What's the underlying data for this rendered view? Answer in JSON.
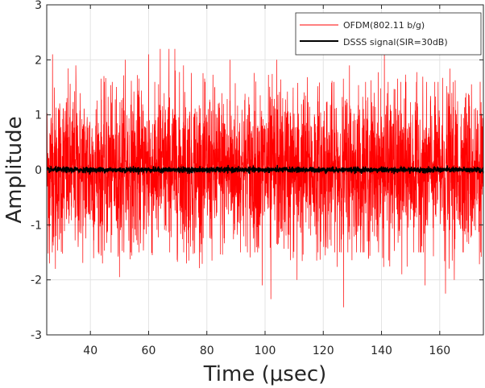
{
  "chart_data": {
    "type": "line",
    "title": "",
    "xlabel": "Time (μsec)",
    "ylabel": "Amplitude",
    "xlim": [
      25,
      175
    ],
    "ylim": [
      -3,
      3
    ],
    "xticks": [
      40,
      60,
      80,
      100,
      120,
      140,
      160
    ],
    "xtick_labels": [
      "40",
      "60",
      "80",
      "100",
      "120",
      "140",
      "160"
    ],
    "yticks": [
      -3,
      -2,
      -1,
      0,
      1,
      2,
      3
    ],
    "ytick_labels": [
      "-3",
      "-2",
      "-1",
      "0",
      "1",
      "2",
      "3"
    ],
    "grid": true,
    "legend_position": "top-right",
    "series": [
      {
        "name": "OFDM(802.11 b/g)",
        "color": "#ff0000",
        "sample_spacing": 0.05,
        "typical_envelope": [
          -1.5,
          1.6
        ],
        "peaks": [
          {
            "x": 27,
            "y": 2.1
          },
          {
            "x": 35,
            "y": 1.9
          },
          {
            "x": 52,
            "y": 2.0
          },
          {
            "x": 60,
            "y": 2.1
          },
          {
            "x": 64,
            "y": 2.2
          },
          {
            "x": 67,
            "y": 2.2
          },
          {
            "x": 69,
            "y": 2.2
          },
          {
            "x": 72,
            "y": 1.9
          },
          {
            "x": 88,
            "y": 2.0
          },
          {
            "x": 104,
            "y": 2.0
          },
          {
            "x": 129,
            "y": 1.9
          },
          {
            "x": 141,
            "y": 2.3
          },
          {
            "x": 26,
            "y": -1.7
          },
          {
            "x": 28,
            "y": -1.8
          },
          {
            "x": 50,
            "y": -1.95
          },
          {
            "x": 73,
            "y": -1.7
          },
          {
            "x": 99,
            "y": -2.1
          },
          {
            "x": 102,
            "y": -2.35
          },
          {
            "x": 111,
            "y": -2.0
          },
          {
            "x": 127,
            "y": -2.5
          },
          {
            "x": 147,
            "y": -1.9
          },
          {
            "x": 155,
            "y": -2.1
          },
          {
            "x": 162,
            "y": -2.25
          },
          {
            "x": 165,
            "y": -2.0
          }
        ]
      },
      {
        "name": "DSSS signal(SIR=30dB)",
        "color": "#000000",
        "sample_spacing": 0.05,
        "typical_envelope": [
          -0.05,
          0.05
        ],
        "mean": 0.0
      }
    ]
  }
}
